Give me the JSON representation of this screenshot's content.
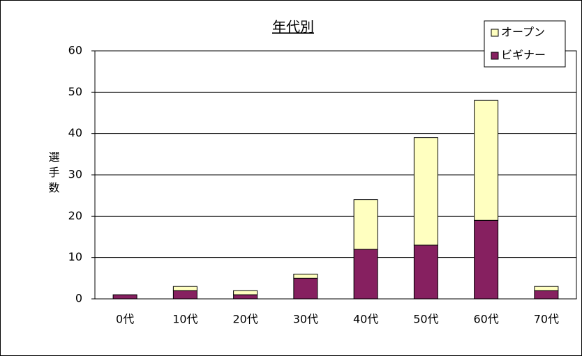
{
  "chart_data": {
    "type": "stacked_bar",
    "title": "年代別",
    "y_label": "選手数",
    "categories": [
      "0代",
      "10代",
      "20代",
      "30代",
      "40代",
      "50代",
      "60代",
      "70代"
    ],
    "series": [
      {
        "name": "ビギナー",
        "color": "#862060",
        "values": [
          1,
          2,
          1,
          5,
          12,
          13,
          19,
          2
        ]
      },
      {
        "name": "オープン",
        "color": "#ffffc0",
        "values": [
          0,
          1,
          1,
          1,
          12,
          26,
          29,
          1
        ]
      }
    ],
    "ylim": [
      0,
      60
    ],
    "yticks": [
      0,
      10,
      20,
      30,
      40,
      50,
      60
    ],
    "grid": true,
    "legend": "top-right"
  }
}
